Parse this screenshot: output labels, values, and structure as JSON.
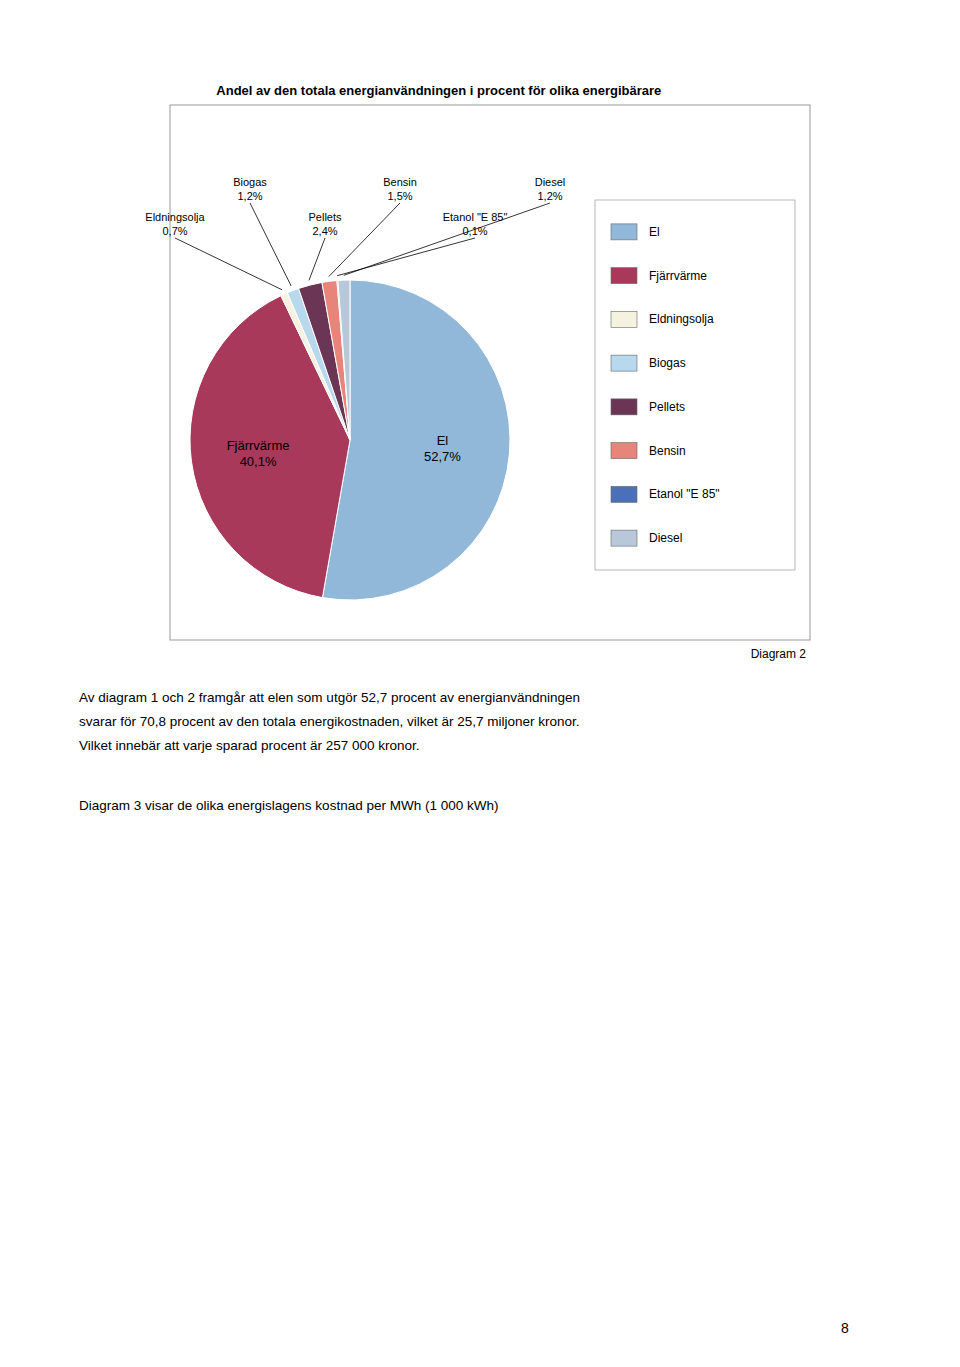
{
  "chart_data": {
    "type": "pie",
    "title": "Andel av den totala energianvändningen i procent för olika energibärare",
    "categories": [
      "El",
      "Fjärrvärme",
      "Eldningsolja",
      "Biogas",
      "Pellets",
      "Bensin",
      "Etanol \"E 85\"",
      "Diesel"
    ],
    "values": [
      52.7,
      40.1,
      0.7,
      1.2,
      2.4,
      1.5,
      0.1,
      1.2
    ],
    "value_labels": [
      "52,7%",
      "40,1%",
      "0,7%",
      "1,2%",
      "2,4%",
      "1,5%",
      "0,1%",
      "1,2%"
    ],
    "colors": [
      "#91B8D8",
      "#A8395A",
      "#F5F2E0",
      "#B8D8ED",
      "#6B3555",
      "#E8857A",
      "#4B70B8",
      "#B8C8D8"
    ],
    "data_labels": true,
    "legend": "right"
  },
  "page": {
    "caption": "Diagram 2",
    "paragraphs": [
      [
        "Av diagram 1 och 2 framgår att elen som utgör 52,7 procent av energianvändningen",
        "svarar för 70,8 procent av den totala energikostnaden, vilket är 25,7 miljoner kronor.",
        "Vilket innebär att varje sparad procent är 257 000 kronor."
      ],
      [
        "Diagram 3 visar de olika energislagens kostnad per MWh (1 000 kWh)"
      ]
    ],
    "page_number": "8"
  }
}
